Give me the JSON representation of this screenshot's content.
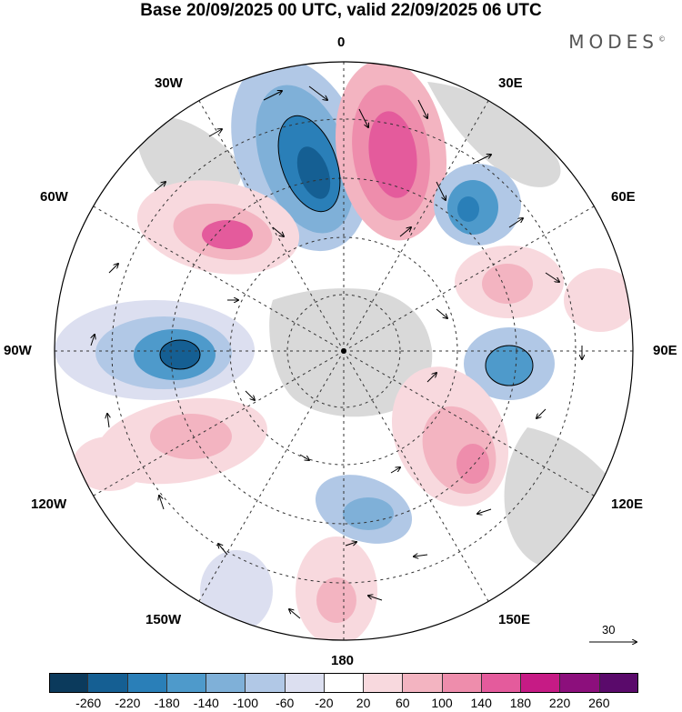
{
  "title": "Base 20/09/2025 00 UTC, valid 22/09/2025 06 UTC",
  "brand": "MODES",
  "brand_mark": "©",
  "map": {
    "projection": "south-polar-stereographic",
    "longitude_labels": {
      "n": "0",
      "ne": "30E",
      "nee": "60E",
      "e": "90E",
      "see": "120E",
      "se": "150E",
      "s": "180",
      "sw": "150W",
      "sww": "120W",
      "w": "90W",
      "nww": "60W",
      "nw": "30W"
    },
    "vector_reference": "30"
  },
  "colorbar": {
    "ticks": [
      "-260",
      "-220",
      "-180",
      "-140",
      "-100",
      "-60",
      "-20",
      "20",
      "60",
      "100",
      "140",
      "180",
      "220",
      "260"
    ],
    "colors": [
      "#0b3a5c",
      "#155f93",
      "#2a7fb8",
      "#4e9acb",
      "#7fb0d8",
      "#b1c8e6",
      "#dcdff0",
      "#ffffff",
      "#f8d9de",
      "#f3b4c1",
      "#ee8dac",
      "#e45b9c",
      "#c61b85",
      "#8c0f7c",
      "#5a0a6b"
    ],
    "palette": {
      "land": "#d9d9d9",
      "grid": "#333333"
    }
  }
}
